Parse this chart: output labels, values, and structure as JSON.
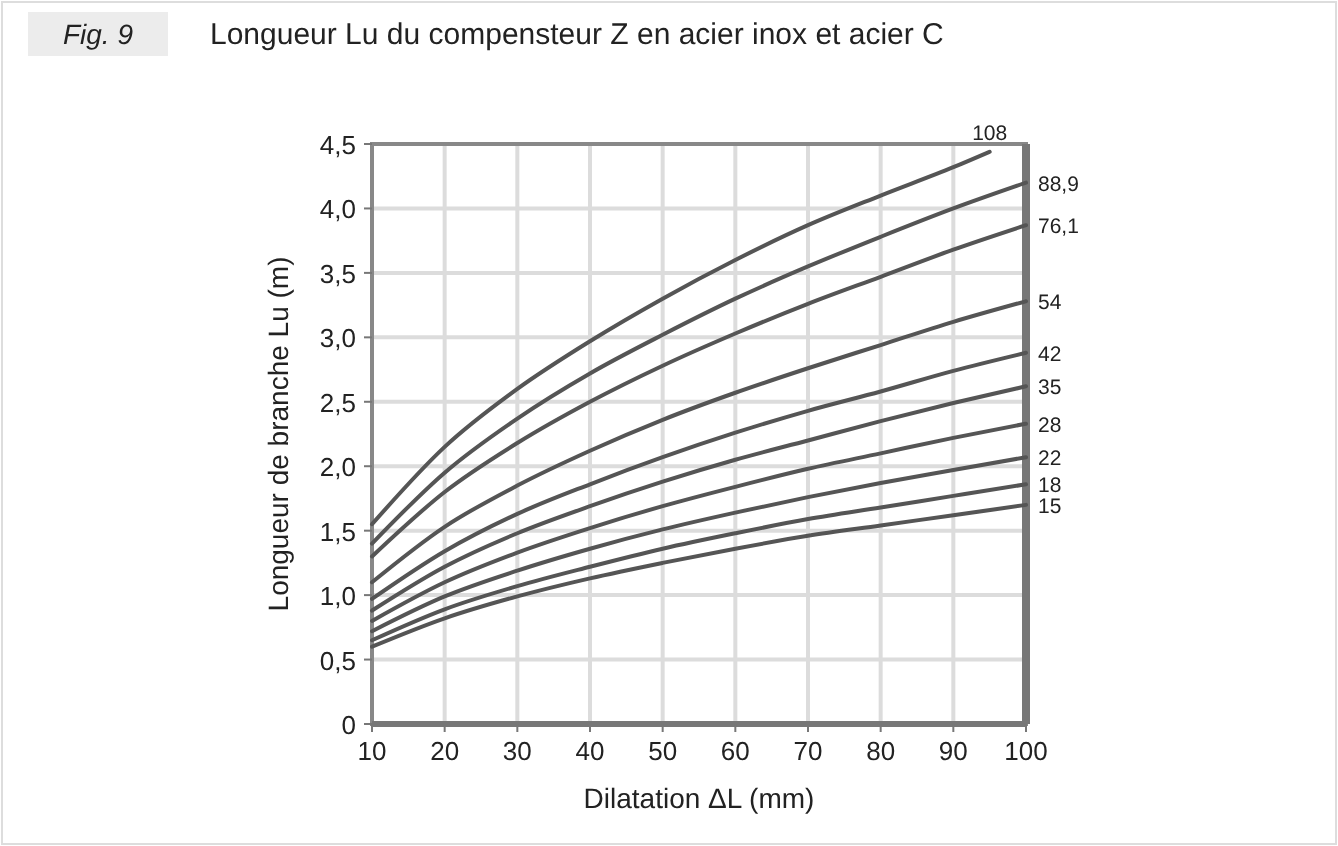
{
  "chart_data": {
    "type": "line",
    "title": "Longueur Lu du compensteur Z en acier inox et acier C",
    "annotations": [
      "Fig. 9"
    ],
    "xlabel": "Dilatation ΔL (mm)",
    "ylabel": "Longueur de branche Lu (m)",
    "x": [
      10,
      20,
      30,
      40,
      50,
      60,
      70,
      80,
      90,
      100
    ],
    "xlim": [
      10,
      100
    ],
    "xticks": [
      10,
      20,
      30,
      40,
      50,
      60,
      70,
      80,
      90,
      100
    ],
    "ylim": [
      0,
      4.5
    ],
    "yticks": [
      {
        "value": 0,
        "label": "0"
      },
      {
        "value": 0.5,
        "label": "0,5"
      },
      {
        "value": 1,
        "label": "1,0"
      },
      {
        "value": 1.5,
        "label": "1,5"
      },
      {
        "value": 2,
        "label": "2,0"
      },
      {
        "value": 2.5,
        "label": "2,5"
      },
      {
        "value": 3,
        "label": "3,0"
      },
      {
        "value": 3.5,
        "label": "3,5"
      },
      {
        "value": 4,
        "label": "4,0"
      },
      {
        "value": 4.5,
        "label": "4,5"
      }
    ],
    "grid": true,
    "marker": "none",
    "line_style": "solid",
    "series": [
      {
        "name": "108",
        "color": "#555555",
        "x": [
          10,
          20,
          30,
          40,
          50,
          60,
          70,
          80,
          90,
          95
        ],
        "values": [
          1.55,
          2.15,
          2.6,
          2.97,
          3.3,
          3.6,
          3.87,
          4.1,
          4.32,
          4.44
        ]
      },
      {
        "name": "88,9",
        "color": "#555555",
        "values": [
          1.4,
          1.95,
          2.37,
          2.72,
          3.02,
          3.3,
          3.55,
          3.78,
          4.0,
          4.2
        ]
      },
      {
        "name": "76,1",
        "color": "#555555",
        "values": [
          1.3,
          1.8,
          2.18,
          2.5,
          2.78,
          3.03,
          3.26,
          3.47,
          3.68,
          3.87
        ]
      },
      {
        "name": "54",
        "color": "#555555",
        "values": [
          1.1,
          1.53,
          1.85,
          2.12,
          2.36,
          2.57,
          2.76,
          2.94,
          3.12,
          3.28
        ]
      },
      {
        "name": "42",
        "color": "#555555",
        "values": [
          0.97,
          1.34,
          1.63,
          1.86,
          2.07,
          2.26,
          2.43,
          2.58,
          2.74,
          2.88
        ]
      },
      {
        "name": "35",
        "color": "#555555",
        "values": [
          0.88,
          1.22,
          1.48,
          1.69,
          1.88,
          2.05,
          2.2,
          2.35,
          2.49,
          2.62
        ]
      },
      {
        "name": "28",
        "color": "#555555",
        "values": [
          0.8,
          1.1,
          1.33,
          1.52,
          1.69,
          1.84,
          1.98,
          2.1,
          2.22,
          2.33
        ]
      },
      {
        "name": "22",
        "color": "#555555",
        "values": [
          0.72,
          0.99,
          1.19,
          1.36,
          1.51,
          1.64,
          1.76,
          1.87,
          1.97,
          2.07
        ]
      },
      {
        "name": "18",
        "color": "#555555",
        "values": [
          0.65,
          0.89,
          1.07,
          1.22,
          1.36,
          1.48,
          1.59,
          1.68,
          1.77,
          1.86
        ]
      },
      {
        "name": "15",
        "color": "#555555",
        "values": [
          0.6,
          0.82,
          0.99,
          1.13,
          1.25,
          1.36,
          1.46,
          1.54,
          1.62,
          1.7
        ]
      }
    ]
  }
}
